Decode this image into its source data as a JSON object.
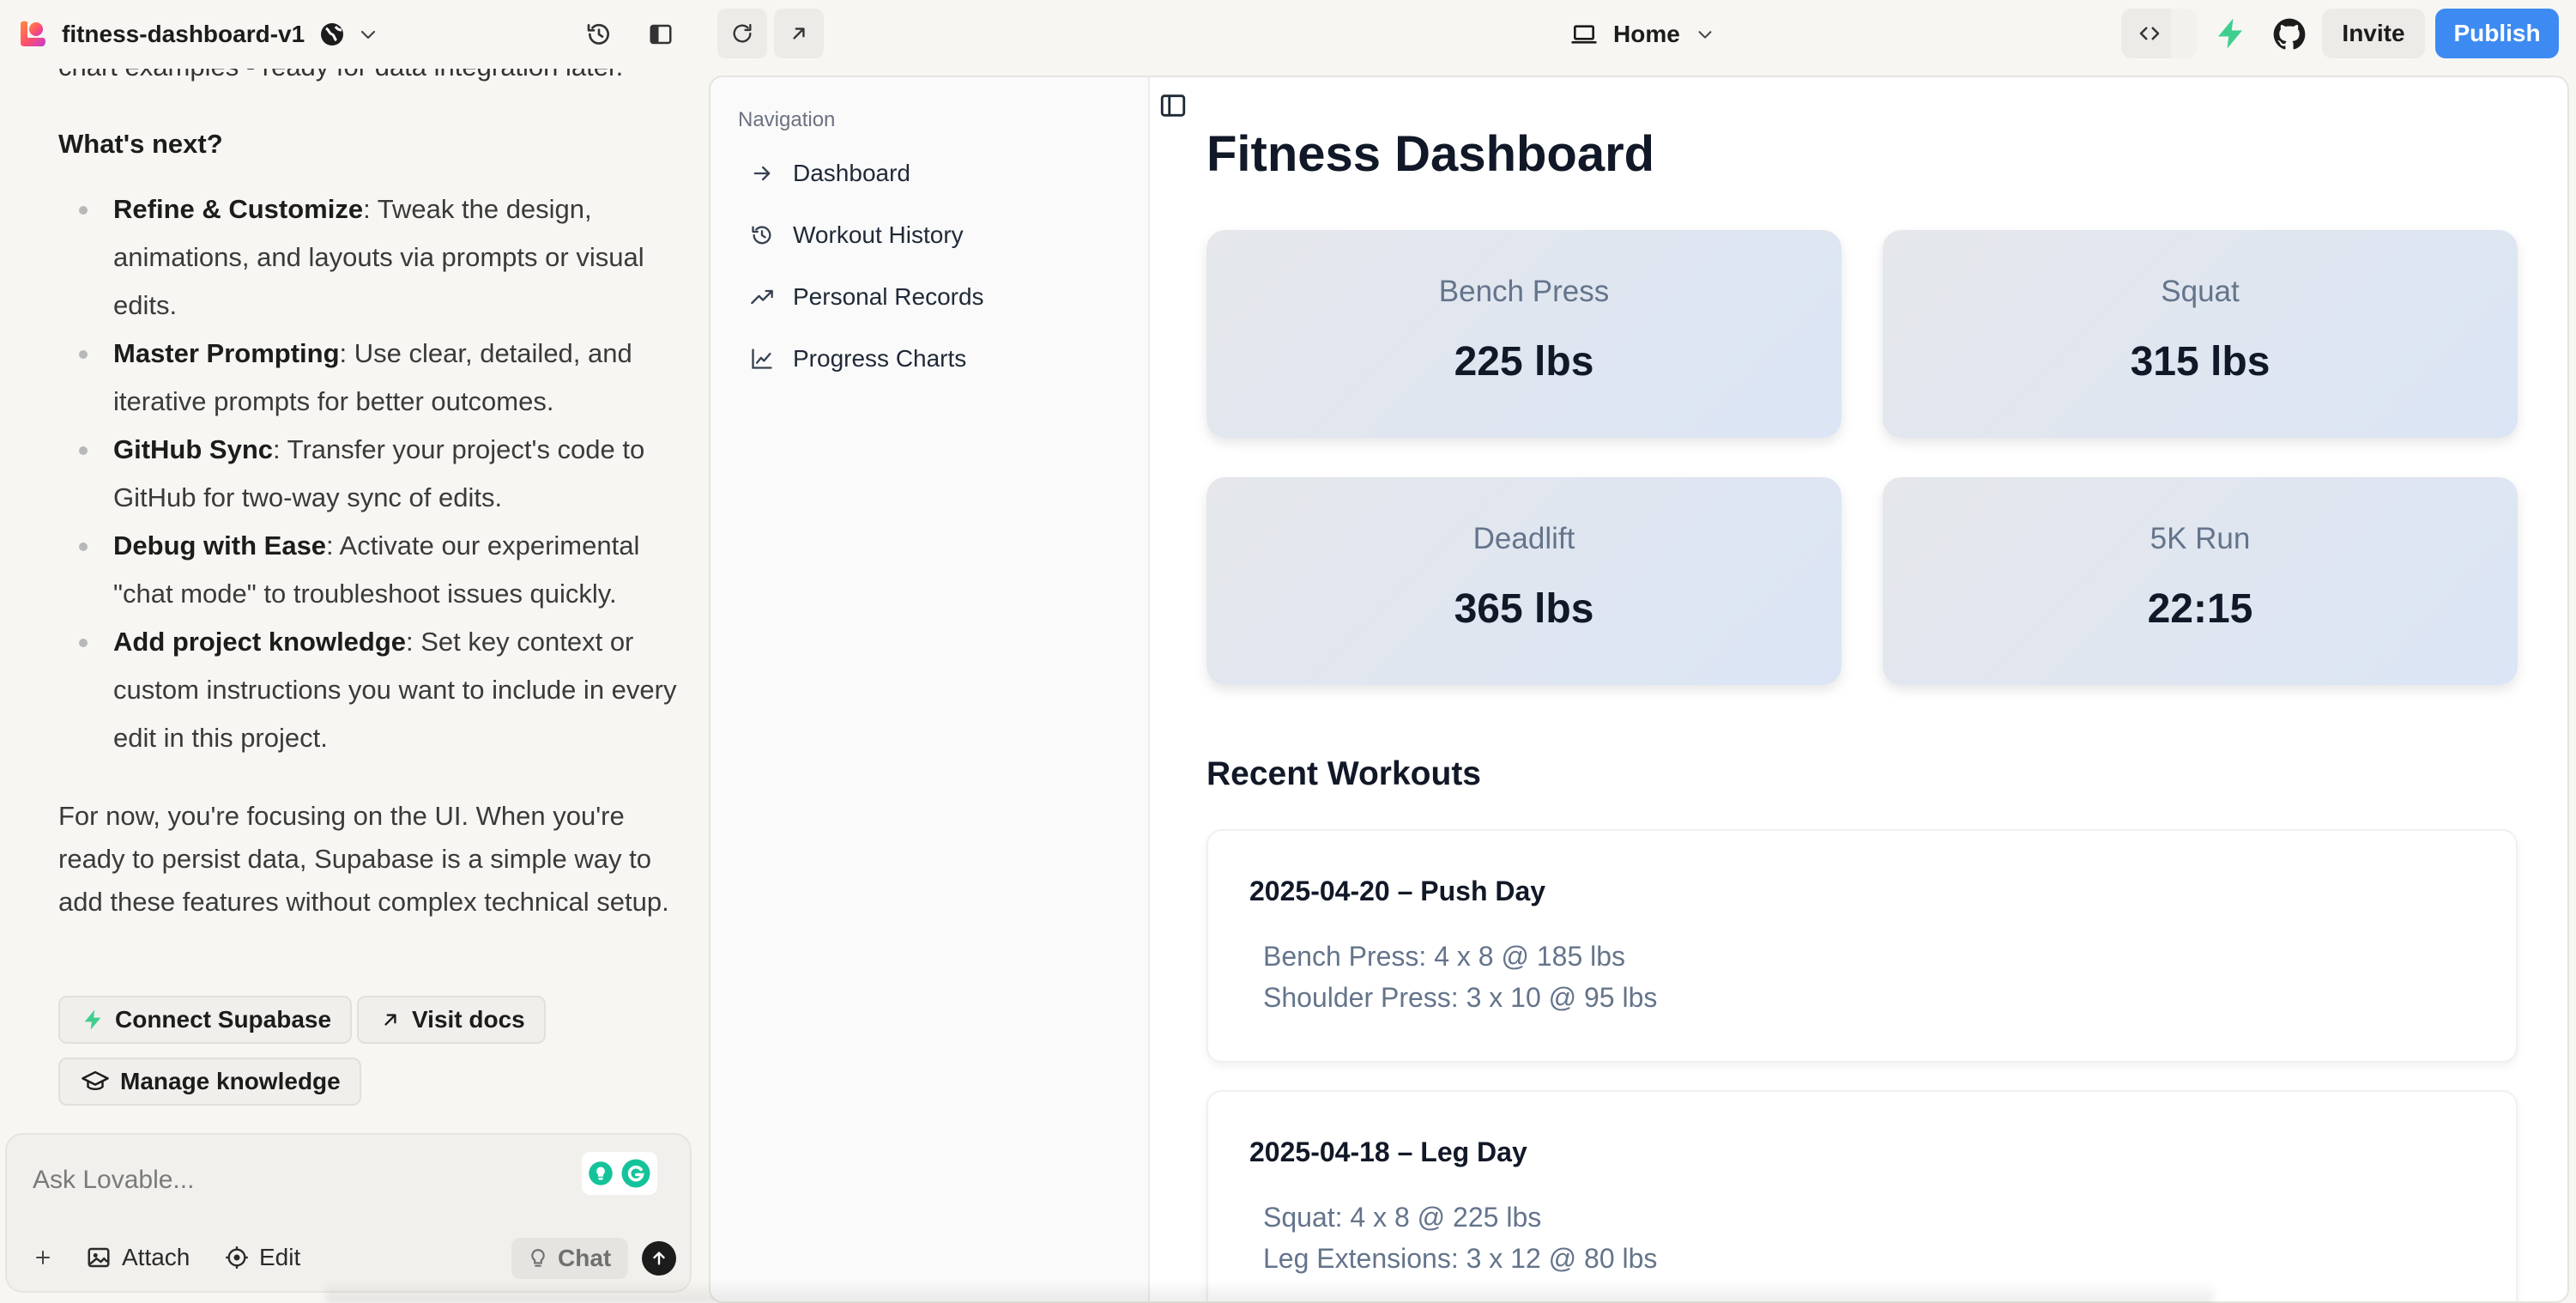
{
  "topbar": {
    "project_name": "fitness-dashboard-v1",
    "page_selector": "Home",
    "invite_label": "Invite",
    "publish_label": "Publish"
  },
  "chat": {
    "cut_line": "chart examples - ready for data integration later.",
    "whats_next": "What's next?",
    "tips": [
      {
        "title": "Refine & Customize",
        "text": ": Tweak the design, animations, and layouts via prompts or visual edits."
      },
      {
        "title": "Master Prompting",
        "text": ": Use clear, detailed, and iterative prompts for better outcomes."
      },
      {
        "title": "GitHub Sync",
        "text": ": Transfer your project's code to GitHub for two-way sync of edits."
      },
      {
        "title": "Debug with Ease",
        "text": ": Activate our experimental \"chat mode\" to troubleshoot issues quickly."
      },
      {
        "title": "Add project knowledge",
        "text": ": Set key context or custom instructions you want to include in every edit in this project."
      }
    ],
    "for_now": "For now, you're focusing on the UI. When you're ready to persist data, Supabase is a simple way to add these features without complex technical setup.",
    "buttons": {
      "connect_supabase": "Connect Supabase",
      "visit_docs": "Visit docs",
      "manage_knowledge": "Manage knowledge"
    },
    "input": {
      "placeholder": "Ask Lovable...",
      "attach": "Attach",
      "edit": "Edit",
      "chat": "Chat"
    }
  },
  "preview": {
    "nav_title": "Navigation",
    "nav_items": [
      {
        "label": "Dashboard",
        "icon": "arrow-right-icon"
      },
      {
        "label": "Workout History",
        "icon": "history-icon"
      },
      {
        "label": "Personal Records",
        "icon": "trending-up-icon"
      },
      {
        "label": "Progress Charts",
        "icon": "line-chart-icon"
      }
    ],
    "title": "Fitness Dashboard",
    "stats": [
      {
        "label": "Bench Press",
        "value": "225 lbs"
      },
      {
        "label": "Squat",
        "value": "315 lbs"
      },
      {
        "label": "Deadlift",
        "value": "365 lbs"
      },
      {
        "label": "5K Run",
        "value": "22:15"
      }
    ],
    "recent_title": "Recent Workouts",
    "workouts": [
      {
        "title": "2025-04-20 – Push Day",
        "lines": [
          "Bench Press: 4 x 8 @ 185 lbs",
          "Shoulder Press: 3 x 10 @ 95 lbs"
        ]
      },
      {
        "title": "2025-04-18 – Leg Day",
        "lines": [
          "Squat: 4 x 8 @ 225 lbs",
          "Leg Extensions: 3 x 12 @ 80 lbs"
        ]
      }
    ]
  },
  "colors": {
    "publish": "#3d8bf2",
    "supabase_green": "#3ecf8e",
    "card_gradient_start": "#e5e7eb",
    "card_gradient_end": "#dbe5f5"
  }
}
